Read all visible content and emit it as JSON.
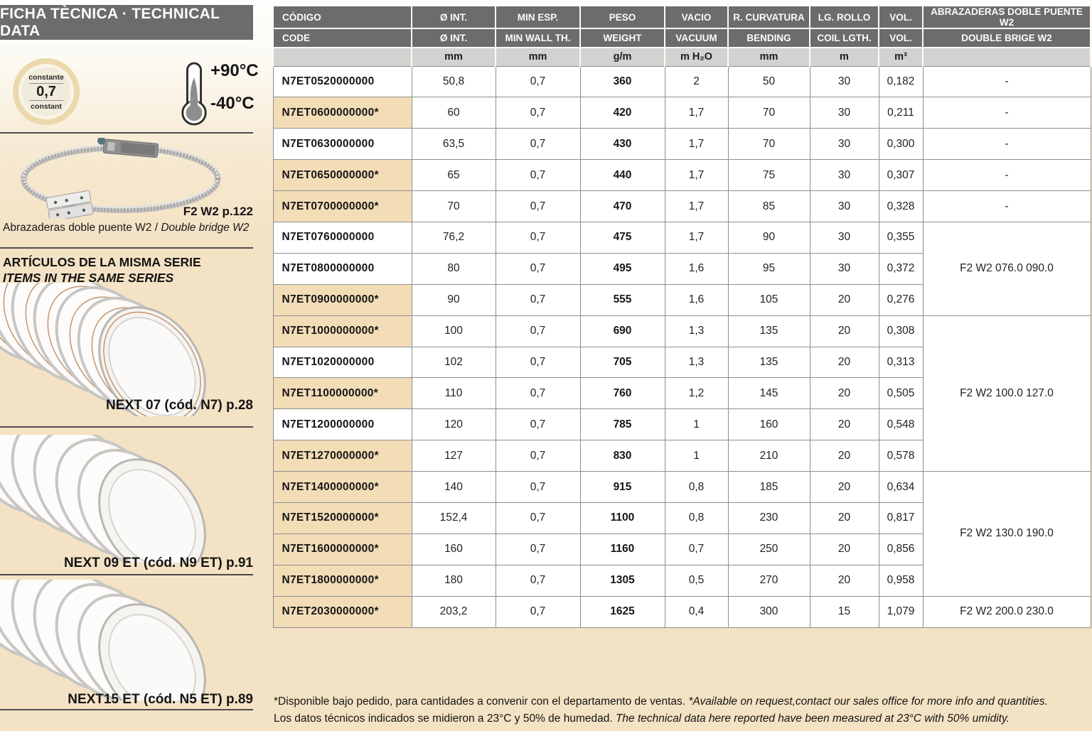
{
  "sidebar": {
    "title": "FICHA TÈCNICA · TECHNICAL DATA",
    "constant_badge": {
      "top": "constante",
      "value": "0,7",
      "bottom": "constant"
    },
    "temperature": {
      "max": "+90°C",
      "min": "-40°C"
    },
    "clamp_ref": "F2 W2 p.122",
    "clamp_caption_es": "Abrazaderas doble puente W2",
    "clamp_caption_sep": " / ",
    "clamp_caption_en": "Double bridge W2",
    "series_title_es": "ARTÍCULOS DE LA MISMA SERIE",
    "series_title_en": "ITEMS IN THE SAME SERIES",
    "related_items": [
      {
        "label": "NEXT 07 (cód. N7) p.28",
        "image": "hose-copper-spiral"
      },
      {
        "label": "NEXT 09 ET (cód. N9 ET) p.91",
        "image": "hose-clear-spiral"
      },
      {
        "label": "NEXT15 ET (cód. N5 ET) p.89",
        "image": "hose-clear-spiral"
      }
    ]
  },
  "table": {
    "headers": [
      {
        "es": "CÓDIGO",
        "en": "CODE",
        "unit": ""
      },
      {
        "es": "Ø INT.",
        "en": "Ø INT.",
        "unit": "mm"
      },
      {
        "es": "MIN ESP.",
        "en": "MIN WALL TH.",
        "unit": "mm"
      },
      {
        "es": "PESO",
        "en": "WEIGHT",
        "unit": "g/m"
      },
      {
        "es": "VACIO",
        "en": "VACUUM",
        "unit": "m H₂O"
      },
      {
        "es": "R. CURVATURA",
        "en": "BENDING",
        "unit": "mm"
      },
      {
        "es": "LG. ROLLO",
        "en": "COIL LGTH.",
        "unit": "m"
      },
      {
        "es": "VOL.",
        "en": "VOL.",
        "unit": "m³"
      },
      {
        "es": "ABRAZADERAS DOBLE PUENTE W2",
        "en": "DOUBLE BRIGE W2",
        "unit": ""
      }
    ],
    "rows": [
      {
        "code": "N7ET0520000000",
        "starred": false,
        "diameter": "50,8",
        "min_wall": "0,7",
        "weight": "360",
        "vacuum": "2",
        "bending": "50",
        "coil": "30",
        "volume": "0,182",
        "clamp": "-",
        "clamp_rowspan": 1
      },
      {
        "code": "N7ET0600000000*",
        "starred": true,
        "diameter": "60",
        "min_wall": "0,7",
        "weight": "420",
        "vacuum": "1,7",
        "bending": "70",
        "coil": "30",
        "volume": "0,211",
        "clamp": "-",
        "clamp_rowspan": 1
      },
      {
        "code": "N7ET0630000000",
        "starred": false,
        "diameter": "63,5",
        "min_wall": "0,7",
        "weight": "430",
        "vacuum": "1,7",
        "bending": "70",
        "coil": "30",
        "volume": "0,300",
        "clamp": "-",
        "clamp_rowspan": 1
      },
      {
        "code": "N7ET0650000000*",
        "starred": true,
        "diameter": "65",
        "min_wall": "0,7",
        "weight": "440",
        "vacuum": "1,7",
        "bending": "75",
        "coil": "30",
        "volume": "0,307",
        "clamp": "-",
        "clamp_rowspan": 1
      },
      {
        "code": "N7ET0700000000*",
        "starred": true,
        "diameter": "70",
        "min_wall": "0,7",
        "weight": "470",
        "vacuum": "1,7",
        "bending": "85",
        "coil": "30",
        "volume": "0,328",
        "clamp": "-",
        "clamp_rowspan": 1
      },
      {
        "code": "N7ET0760000000",
        "starred": false,
        "diameter": "76,2",
        "min_wall": "0,7",
        "weight": "475",
        "vacuum": "1,7",
        "bending": "90",
        "coil": "30",
        "volume": "0,355",
        "clamp": "F2 W2 076.0 090.0",
        "clamp_rowspan": 3
      },
      {
        "code": "N7ET0800000000",
        "starred": false,
        "diameter": "80",
        "min_wall": "0,7",
        "weight": "495",
        "vacuum": "1,6",
        "bending": "95",
        "coil": "30",
        "volume": "0,372",
        "clamp": null
      },
      {
        "code": "N7ET0900000000*",
        "starred": true,
        "diameter": "90",
        "min_wall": "0,7",
        "weight": "555",
        "vacuum": "1,6",
        "bending": "105",
        "coil": "20",
        "volume": "0,276",
        "clamp": null
      },
      {
        "code": "N7ET1000000000*",
        "starred": true,
        "diameter": "100",
        "min_wall": "0,7",
        "weight": "690",
        "vacuum": "1,3",
        "bending": "135",
        "coil": "20",
        "volume": "0,308",
        "clamp": "F2 W2 100.0 127.0",
        "clamp_rowspan": 5
      },
      {
        "code": "N7ET1020000000",
        "starred": false,
        "diameter": "102",
        "min_wall": "0,7",
        "weight": "705",
        "vacuum": "1,3",
        "bending": "135",
        "coil": "20",
        "volume": "0,313",
        "clamp": null
      },
      {
        "code": "N7ET1100000000*",
        "starred": true,
        "diameter": "110",
        "min_wall": "0,7",
        "weight": "760",
        "vacuum": "1,2",
        "bending": "145",
        "coil": "20",
        "volume": "0,505",
        "clamp": null
      },
      {
        "code": "N7ET1200000000",
        "starred": false,
        "diameter": "120",
        "min_wall": "0,7",
        "weight": "785",
        "vacuum": "1",
        "bending": "160",
        "coil": "20",
        "volume": "0,548",
        "clamp": null
      },
      {
        "code": "N7ET1270000000*",
        "starred": true,
        "diameter": "127",
        "min_wall": "0,7",
        "weight": "830",
        "vacuum": "1",
        "bending": "210",
        "coil": "20",
        "volume": "0,578",
        "clamp": null
      },
      {
        "code": "N7ET1400000000*",
        "starred": true,
        "diameter": "140",
        "min_wall": "0,7",
        "weight": "915",
        "vacuum": "0,8",
        "bending": "185",
        "coil": "20",
        "volume": "0,634",
        "clamp": "F2 W2 130.0 190.0",
        "clamp_rowspan": 4
      },
      {
        "code": "N7ET1520000000*",
        "starred": true,
        "diameter": "152,4",
        "min_wall": "0,7",
        "weight": "1100",
        "vacuum": "0,8",
        "bending": "230",
        "coil": "20",
        "volume": "0,817",
        "clamp": null
      },
      {
        "code": "N7ET1600000000*",
        "starred": true,
        "diameter": "160",
        "min_wall": "0,7",
        "weight": "1160",
        "vacuum": "0,7",
        "bending": "250",
        "coil": "20",
        "volume": "0,856",
        "clamp": null
      },
      {
        "code": "N7ET1800000000*",
        "starred": true,
        "diameter": "180",
        "min_wall": "0,7",
        "weight": "1305",
        "vacuum": "0,5",
        "bending": "270",
        "coil": "20",
        "volume": "0,958",
        "clamp": null
      },
      {
        "code": "N7ET2030000000*",
        "starred": true,
        "diameter": "203,2",
        "min_wall": "0,7",
        "weight": "1625",
        "vacuum": "0,4",
        "bending": "300",
        "coil": "15",
        "volume": "1,079",
        "clamp": "F2 W2 200.0 230.0",
        "clamp_rowspan": 1
      }
    ]
  },
  "footnotes": {
    "line1_es": "*Disponible bajo pedido, para cantidades a convenir con el departamento de ventas. ",
    "line1_en": "*Available on request,contact our sales office for more info and quantities.",
    "line2_es": "Los datos técnicos indicados se midieron a 23°C y 50% de humedad. ",
    "line2_en": "The technical data here reported have been measured at 23°C with 50% umidity."
  },
  "colors": {
    "header_gray": "#6b6c6e",
    "unit_row_gray": "#d2d2d1",
    "highlight_beige": "#f3ddb7",
    "page_beige": "#f4e2c4",
    "copper_spiral": "#c79a78"
  }
}
